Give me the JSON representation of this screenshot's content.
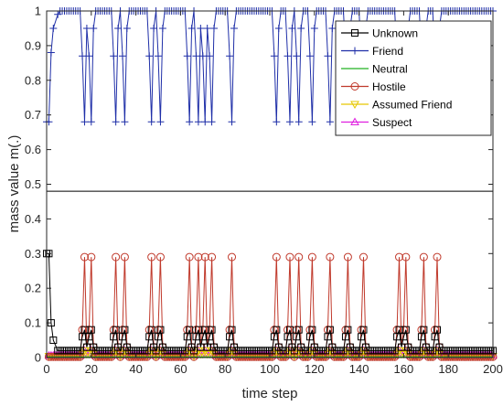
{
  "chart_data": {
    "type": "line",
    "title": "",
    "xlabel": "time step",
    "ylabel": "mass value m(.)",
    "xlim": [
      0,
      200
    ],
    "ylim": [
      0,
      1
    ],
    "x_ticks": [
      "0",
      "20",
      "40",
      "60",
      "80",
      "100",
      "120",
      "140",
      "160",
      "180",
      "200"
    ],
    "y_ticks": [
      "0",
      "0.1",
      "0.2",
      "0.3",
      "0.4",
      "0.5",
      "0.6",
      "0.7",
      "0.8",
      "0.9",
      "1"
    ],
    "legend_position": "top-right",
    "grid": false,
    "spike_times": [
      16,
      19,
      30,
      34,
      46,
      50,
      63,
      67,
      70,
      73,
      82,
      102,
      108,
      112,
      118,
      126,
      134,
      141,
      157,
      160,
      168,
      174
    ],
    "series": [
      {
        "name": "Unknown",
        "color": "#000000",
        "marker": "square",
        "baseline": 0.02,
        "initial": [
          [
            1,
            0.3
          ],
          [
            2,
            0.1
          ],
          [
            3,
            0.05
          ],
          [
            5,
            0.02
          ]
        ],
        "spike_profile": [
          0.06,
          0.08,
          0.03
        ]
      },
      {
        "name": "Friend",
        "color": "#1f2fa8",
        "marker": "plus",
        "baseline": 1.0,
        "initial": [
          [
            1,
            0.68
          ],
          [
            2,
            0.88
          ],
          [
            3,
            0.95
          ],
          [
            5,
            0.99
          ]
        ],
        "spike_profile": [
          0.87,
          0.68,
          0.95
        ]
      },
      {
        "name": "Neutral",
        "color": "#22b022",
        "marker": "none",
        "values": [
          [
            0,
            0.002
          ],
          [
            200,
            0.002
          ]
        ]
      },
      {
        "name": "Hostile",
        "color": "#c0392b",
        "marker": "circle",
        "baseline": 0.002,
        "initial": [],
        "spike_profile": [
          0.08,
          0.29,
          0.03
        ]
      },
      {
        "name": "Assumed Friend",
        "color": "#e6c800",
        "marker": "triangle-down",
        "baseline": 0.004,
        "initial": [],
        "spike_profile": [
          0.01,
          0.02,
          0.01
        ]
      },
      {
        "name": "Suspect",
        "color": "#e020e0",
        "marker": "triangle-up",
        "baseline": 0.006,
        "initial": [],
        "spike_profile": [
          0.01,
          0.02,
          0.01
        ]
      }
    ],
    "reference_line": {
      "y": 0.48,
      "color": "#000000"
    }
  }
}
